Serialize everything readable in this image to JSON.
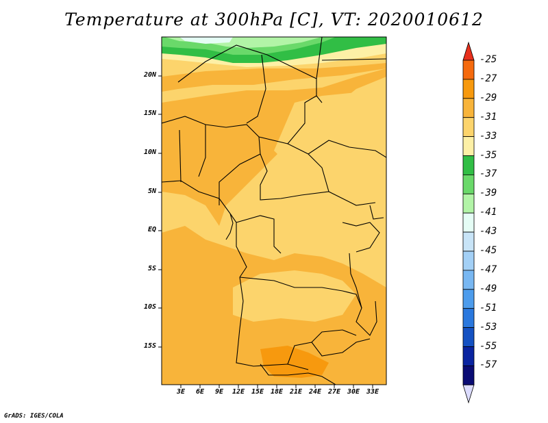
{
  "title": "Temperature at 300hPa [C], VT: 2020010612",
  "footer": "GrADS: IGES/COLA",
  "map": {
    "lat_labels": [
      "20N",
      "15N",
      "10N",
      "5N",
      "EQ",
      "5S",
      "10S",
      "15S"
    ],
    "lon_labels": [
      "3E",
      "6E",
      "9E",
      "12E",
      "15E",
      "18E",
      "21E",
      "24E",
      "27E",
      "30E",
      "33E"
    ]
  },
  "colorbar": {
    "labels": [
      "-25",
      "-27",
      "-29",
      "-31",
      "-33",
      "-35",
      "-37",
      "-39",
      "-41",
      "-43",
      "-45",
      "-47",
      "-49",
      "-51",
      "-53",
      "-55",
      "-57"
    ],
    "colors": [
      "#e8301c",
      "#f56a0d",
      "#f7990e",
      "#f8b43a",
      "#fcd46c",
      "#fdf0a6",
      "#31be45",
      "#6ad96a",
      "#b2f4a7",
      "#e5fdf5",
      "#c8e4f7",
      "#a3d0f6",
      "#78b7f2",
      "#4d9cec",
      "#2a78de",
      "#1451c2",
      "#0a24a0",
      "#0a0c74",
      "#dcdcff"
    ]
  },
  "chart_data": {
    "type": "heatmap",
    "title": "Temperature at 300hPa [C], VT: 2020010612",
    "xlim": [
      0,
      35
    ],
    "ylim": [
      -20,
      24.5
    ],
    "x_ticks": [
      "3E",
      "6E",
      "9E",
      "12E",
      "15E",
      "18E",
      "21E",
      "24E",
      "27E",
      "30E",
      "33E"
    ],
    "y_ticks": [
      "20N",
      "15N",
      "10N",
      "5N",
      "EQ",
      "5S",
      "10S",
      "15S"
    ],
    "legend_levels": [
      -25,
      -27,
      -29,
      -31,
      -33,
      -35,
      -37,
      -39,
      -41,
      -43,
      -45,
      -47,
      -49,
      -51,
      -53,
      -55,
      -57
    ],
    "legend_placement": "right"
  }
}
